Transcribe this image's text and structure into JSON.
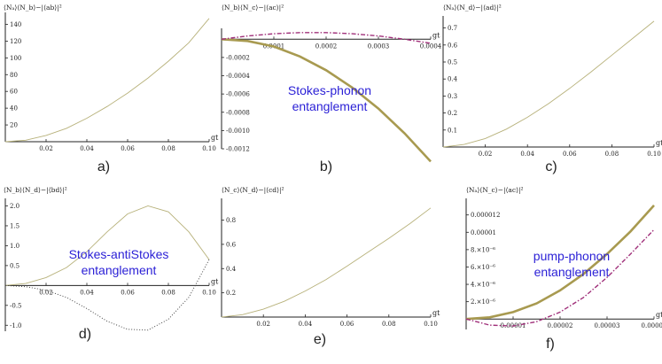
{
  "chart_data": [
    {
      "type": "line",
      "panel": "a)",
      "ylabel": "⟨Nₐ⟩⟨N_b⟩−|⟨ab⟩|²",
      "xlabel": "gt",
      "xlim": [
        0,
        0.1
      ],
      "ylim": [
        0,
        150
      ],
      "xticks": [
        "0.02",
        "0.04",
        "0.06",
        "0.08",
        "0.10"
      ],
      "yticks": [
        "20",
        "40",
        "60",
        "80",
        "100",
        "120",
        "140"
      ],
      "series": [
        {
          "style": "thin",
          "color": "#b7b17a",
          "x": [
            0,
            0.01,
            0.02,
            0.03,
            0.04,
            0.05,
            0.06,
            0.07,
            0.08,
            0.09,
            0.1
          ],
          "y": [
            0,
            1.8,
            7.5,
            16,
            28,
            42,
            58,
            76,
            96,
            118,
            147
          ]
        }
      ]
    },
    {
      "type": "line",
      "panel": "b)",
      "ylabel": "⟨N_b⟩⟨N_c⟩−|⟨ac⟩|²",
      "xlabel": "gt",
      "xlim": [
        0,
        0.0004
      ],
      "ylim": [
        -0.0012,
        8e-05
      ],
      "xticks": [
        "0.0001",
        "0.0002",
        "0.0003",
        "0.0004"
      ],
      "yticks": [
        "-0.0002",
        "-0.0004",
        "-0.0006",
        "-0.0008",
        "-0.0010",
        "-0.0012"
      ],
      "annotation": [
        "Stokes-phonon",
        "entanglement"
      ],
      "series": [
        {
          "style": "thick",
          "color": "#a89a50",
          "x": [
            0,
            5e-05,
            0.0001,
            0.00015,
            0.0002,
            0.00025,
            0.0003,
            0.00035,
            0.0004
          ],
          "y": [
            0,
            -2e-05,
            -8e-05,
            -0.00019,
            -0.00034,
            -0.00053,
            -0.00076,
            -0.00103,
            -0.00134
          ]
        },
        {
          "style": "dashdot",
          "color": "#a0307a",
          "x": [
            0,
            5e-05,
            0.0001,
            0.00015,
            0.0002,
            0.00025,
            0.0003,
            0.00035,
            0.0004
          ],
          "y": [
            0,
            3.5e-05,
            6e-05,
            7.2e-05,
            7.2e-05,
            6e-05,
            3.5e-05,
            0,
            -4.5e-05
          ]
        }
      ]
    },
    {
      "type": "line",
      "panel": "c)",
      "ylabel": "⟨Nₐ⟩⟨N_d⟩−|⟨ad⟩|²",
      "xlabel": "gt",
      "xlim": [
        0,
        0.1
      ],
      "ylim": [
        0,
        0.75
      ],
      "xticks": [
        "0.02",
        "0.04",
        "0.06",
        "0.08",
        "0.10"
      ],
      "yticks": [
        "0.1",
        "0.2",
        "0.3",
        "0.4",
        "0.5",
        "0.6",
        "0.7"
      ],
      "series": [
        {
          "style": "thin",
          "color": "#b7b17a",
          "x": [
            0,
            0.01,
            0.02,
            0.03,
            0.04,
            0.05,
            0.06,
            0.07,
            0.08,
            0.09,
            0.1
          ],
          "y": [
            0,
            0.015,
            0.05,
            0.105,
            0.175,
            0.255,
            0.345,
            0.44,
            0.54,
            0.64,
            0.74
          ]
        }
      ]
    },
    {
      "type": "line",
      "panel": "d)",
      "ylabel": "⟨N_b⟩⟨N_d⟩−|⟨bd⟩|²",
      "xlabel": "gt",
      "xlim": [
        0,
        0.1
      ],
      "ylim": [
        -1.15,
        2.1
      ],
      "xticks": [
        "0.02",
        "0.04",
        "0.06",
        "0.08",
        "0.10"
      ],
      "yticks": [
        "2.0",
        "1.5",
        "1.0",
        "0.5",
        "-0.5",
        "-1.0"
      ],
      "annotation": [
        "Stokes-antiStokes",
        "entanglement"
      ],
      "series": [
        {
          "style": "thin",
          "color": "#b7b17a",
          "x": [
            0,
            0.01,
            0.02,
            0.03,
            0.04,
            0.05,
            0.06,
            0.07,
            0.08,
            0.09,
            0.1
          ],
          "y": [
            0,
            0.05,
            0.2,
            0.45,
            0.85,
            1.35,
            1.8,
            2.0,
            1.85,
            1.35,
            0.65
          ]
        },
        {
          "style": "dotted",
          "color": "#444444",
          "x": [
            0,
            0.01,
            0.02,
            0.03,
            0.04,
            0.05,
            0.06,
            0.07,
            0.08,
            0.09,
            0.1
          ],
          "y": [
            0,
            -0.03,
            -0.12,
            -0.3,
            -0.58,
            -0.9,
            -1.1,
            -1.12,
            -0.85,
            -0.3,
            0.65
          ]
        }
      ]
    },
    {
      "type": "line",
      "panel": "e)",
      "ylabel": "⟨N_c⟩⟨N_d⟩−|⟨cd⟩|²",
      "xlabel": "gt",
      "xlim": [
        0,
        0.1
      ],
      "ylim": [
        0,
        0.95
      ],
      "xticks": [
        "0.02",
        "0.04",
        "0.06",
        "0.08",
        "0.10"
      ],
      "yticks": [
        "0.2",
        "0.4",
        "0.6",
        "0.8"
      ],
      "series": [
        {
          "style": "thin",
          "color": "#b7b17a",
          "x": [
            0,
            0.01,
            0.02,
            0.03,
            0.04,
            0.05,
            0.06,
            0.07,
            0.08,
            0.09,
            0.1
          ],
          "y": [
            0,
            0.02,
            0.065,
            0.13,
            0.215,
            0.31,
            0.42,
            0.535,
            0.65,
            0.77,
            0.9
          ]
        }
      ]
    },
    {
      "type": "line",
      "panel": "f)",
      "ylabel": "⟨Nₐ⟩⟨N_c⟩−|⟨ac⟩|²",
      "xlabel": "gt",
      "xlim": [
        0,
        4e-05
      ],
      "ylim": [
        -1.2e-06,
        1.35e-05
      ],
      "xticks": [
        "0.00001",
        "0.00002",
        "0.00003",
        "0.00004"
      ],
      "yticks": [
        "0.000012",
        "0.00001",
        "8.×10⁻⁶",
        "6.×10⁻⁶",
        "4.×10⁻⁶",
        "2.×10⁻⁶"
      ],
      "annotation": [
        "pump-phonon",
        "entanglement"
      ],
      "series": [
        {
          "style": "thick",
          "color": "#a89a50",
          "x": [
            0,
            5e-06,
            1e-05,
            1.5e-05,
            2e-05,
            2.5e-05,
            3e-05,
            3.5e-05,
            4e-05
          ],
          "y": [
            0,
            2e-07,
            8e-07,
            1.8e-06,
            3.3e-06,
            5.2e-06,
            7.5e-06,
            1.01e-05,
            1.31e-05
          ]
        },
        {
          "style": "dashdot",
          "color": "#a0307a",
          "x": [
            0,
            5e-06,
            1e-05,
            1.5e-05,
            2e-05,
            2.5e-05,
            3e-05,
            3.5e-05,
            4e-05
          ],
          "y": [
            0,
            -7e-07,
            -8e-07,
            -3e-07,
            8e-07,
            2.5e-06,
            4.8e-06,
            7.5e-06,
            1.03e-05
          ]
        }
      ]
    }
  ]
}
